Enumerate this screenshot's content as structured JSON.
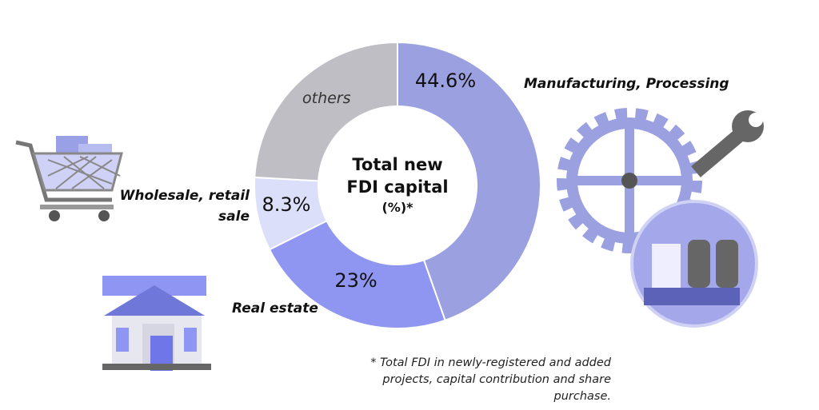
{
  "chart_data": {
    "type": "donut",
    "title": "Total new FDI capital",
    "subtitle": "(%)*",
    "categories": [
      "Manufacturing, Processing",
      "Real estate",
      "Wholesale, retail sale",
      "others"
    ],
    "values": [
      44.6,
      23,
      8.3,
      24.1
    ],
    "value_labels": [
      "44.6%",
      "23%",
      "8.3%",
      null
    ],
    "colors": [
      "#9ba1e0",
      "#8e96f1",
      "#dcdffa",
      "#bebec4"
    ],
    "footnote": "* Total FDI in newly-registered and added projects, capital contribution and share purchase."
  }
}
